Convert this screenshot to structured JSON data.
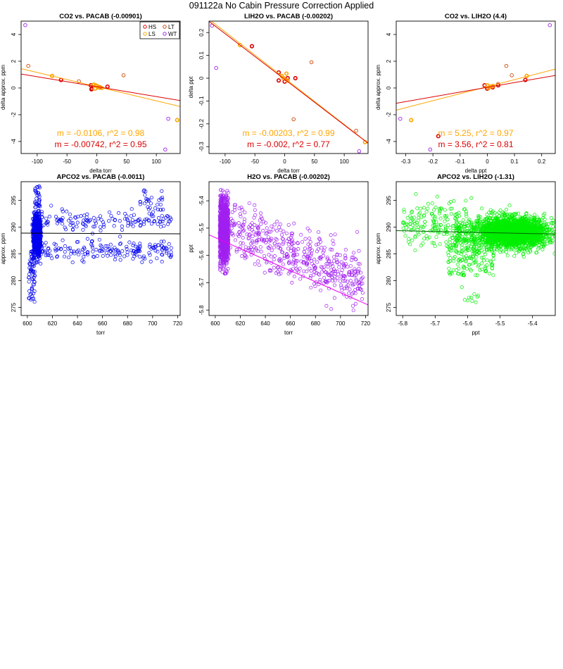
{
  "page": {
    "title": "091122a   No Cabin Pressure Correction Applied"
  },
  "colors": {
    "HS": "#dd0000",
    "LS": "#ffa500",
    "LT": "#cc4400",
    "WT": "#a020f0",
    "blue": "#0000ee",
    "purple": "#a020f0",
    "green": "#00ee00",
    "magenta": "#ee00ee",
    "darkgreen": "#006400"
  },
  "chart_data": [
    {
      "id": "p1",
      "type": "scatter",
      "title": "CO2 vs. PACAB (-0.00901)",
      "xlabel": "delta torr",
      "ylabel": "delta approx. ppm",
      "xlim": [
        -127,
        140
      ],
      "ylim": [
        -4.9,
        5.0
      ],
      "xticks": [
        -100,
        -50,
        0,
        50,
        100
      ],
      "yticks": [
        -4,
        -2,
        0,
        2,
        4
      ],
      "legend": {
        "position": "top-right",
        "entries": [
          {
            "label": "HS",
            "color": "#dd0000"
          },
          {
            "label": "LT",
            "color": "#cc4400"
          },
          {
            "label": "LS",
            "color": "#ffa500"
          },
          {
            "label": "WT",
            "color": "#a020f0"
          }
        ]
      },
      "series": [
        {
          "name": "HS",
          "color": "#dd0000",
          "points": [
            [
              -10,
              0.2
            ],
            [
              -8,
              -0.05
            ],
            [
              -9,
              -0.1
            ],
            [
              18,
              0.1
            ],
            [
              -60,
              0.6
            ],
            [
              5,
              0.05
            ]
          ]
        },
        {
          "name": "LS",
          "color": "#ffa500",
          "points": [
            [
              -75,
              0.9
            ],
            [
              -5,
              0.25
            ],
            [
              -2,
              0.2
            ],
            [
              0,
              0.15
            ],
            [
              3,
              0.1
            ],
            [
              8,
              0.0
            ],
            [
              -3,
              -0.05
            ],
            [
              2,
              0.05
            ],
            [
              135,
              -2.4
            ]
          ]
        },
        {
          "name": "LT",
          "color": "#cc4400",
          "points": [
            [
              -115,
              1.65
            ],
            [
              45,
              0.95
            ],
            [
              -30,
              0.5
            ]
          ]
        },
        {
          "name": "WT",
          "color": "#a020f0",
          "points": [
            [
              -120,
              4.7
            ],
            [
              115,
              -4.6
            ],
            [
              120,
              -2.3
            ]
          ]
        }
      ],
      "lines": [
        {
          "color": "#ffa500",
          "slope": -0.0106,
          "intercept": 0.1
        },
        {
          "color": "#dd0000",
          "slope": -0.00742,
          "intercept": 0.1
        }
      ],
      "annotations": [
        {
          "text": "m = -0.0106, r^2 = 0.98",
          "color": "#ffa500"
        },
        {
          "text": "m = -0.00742, r^2 = 0.95",
          "color": "#dd0000"
        }
      ]
    },
    {
      "id": "p2",
      "type": "scatter",
      "title": "LIH2O vs. PACAB (-0.00202)",
      "xlabel": "delta torr",
      "ylabel": "delta ppt",
      "xlim": [
        -127,
        140
      ],
      "ylim": [
        -0.33,
        0.25
      ],
      "xticks": [
        -100,
        -50,
        0,
        50,
        100
      ],
      "yticks": [
        -0.3,
        -0.2,
        -0.1,
        0.0,
        0.1,
        0.2
      ],
      "series": [
        {
          "name": "HS",
          "color": "#dd0000",
          "points": [
            [
              -55,
              0.14
            ],
            [
              -10,
              0.025
            ],
            [
              -10,
              -0.01
            ],
            [
              5,
              0.0
            ],
            [
              18,
              0.0
            ],
            [
              0,
              -0.015
            ]
          ]
        },
        {
          "name": "LS",
          "color": "#ffa500",
          "points": [
            [
              -75,
              0.145
            ],
            [
              -5,
              0.01
            ],
            [
              3,
              0.02
            ],
            [
              5,
              -0.01
            ],
            [
              135,
              -0.28
            ],
            [
              -2,
              0.0
            ]
          ]
        },
        {
          "name": "LT",
          "color": "#cc4400",
          "points": [
            [
              45,
              0.07
            ],
            [
              15,
              -0.18
            ],
            [
              120,
              -0.23
            ]
          ]
        },
        {
          "name": "WT",
          "color": "#a020f0",
          "points": [
            [
              -122,
              0.23
            ],
            [
              -115,
              0.045
            ],
            [
              125,
              -0.32
            ]
          ]
        }
      ],
      "lines": [
        {
          "color": "#ffa500",
          "slope": -0.00203,
          "intercept": 0.0
        },
        {
          "color": "#dd0000",
          "slope": -0.002,
          "intercept": -0.005
        }
      ],
      "annotations": [
        {
          "text": "m = -0.00203, r^2 = 0.99",
          "color": "#ffa500"
        },
        {
          "text": "m = -0.002, r^2 = 0.77",
          "color": "#dd0000"
        }
      ]
    },
    {
      "id": "p3",
      "type": "scatter",
      "title": "CO2 vs. LIH2O (4.4)",
      "xlabel": "delta ppt",
      "ylabel": "delta approx. ppm",
      "xlim": [
        -0.335,
        0.25
      ],
      "ylim": [
        -4.9,
        5.0
      ],
      "xticks": [
        -0.3,
        -0.2,
        -0.1,
        0.0,
        0.1,
        0.2
      ],
      "yticks": [
        -4,
        -2,
        0,
        2,
        4
      ],
      "series": [
        {
          "name": "HS",
          "color": "#dd0000",
          "points": [
            [
              0.14,
              0.6
            ],
            [
              -0.01,
              0.2
            ],
            [
              0.0,
              -0.05
            ],
            [
              0.02,
              0.05
            ],
            [
              0.04,
              0.2
            ],
            [
              -0.18,
              -3.6
            ]
          ]
        },
        {
          "name": "LS",
          "color": "#ffa500",
          "points": [
            [
              0.145,
              0.9
            ],
            [
              0.0,
              0.2
            ],
            [
              0.01,
              0.1
            ],
            [
              0.02,
              0.15
            ],
            [
              -0.28,
              -2.4
            ],
            [
              0.005,
              0.0
            ]
          ]
        },
        {
          "name": "LT",
          "color": "#cc4400",
          "points": [
            [
              0.07,
              1.65
            ],
            [
              0.09,
              0.95
            ],
            [
              0.04,
              0.3
            ]
          ]
        },
        {
          "name": "WT",
          "color": "#a020f0",
          "points": [
            [
              0.23,
              4.7
            ],
            [
              -0.32,
              -2.3
            ],
            [
              -0.21,
              -4.6
            ]
          ]
        }
      ],
      "lines": [
        {
          "color": "#ffa500",
          "slope": 5.25,
          "intercept": 0.1
        },
        {
          "color": "#dd0000",
          "slope": 3.56,
          "intercept": 0.05
        }
      ],
      "annotations": [
        {
          "text": "m = 5.25, r^2 = 0.97",
          "color": "#ffa500"
        },
        {
          "text": "m = 3.56, r^2 = 0.81",
          "color": "#dd0000"
        }
      ]
    },
    {
      "id": "p4",
      "type": "scatter",
      "title": "APCO2 vs. PACAB (-0.0011)",
      "xlabel": "torr",
      "ylabel": "approx. ppm",
      "xlim": [
        595,
        722
      ],
      "ylim": [
        273.5,
        298.5
      ],
      "xticks": [
        600,
        620,
        640,
        660,
        680,
        700,
        720
      ],
      "yticks": [
        275,
        280,
        285,
        290,
        295
      ],
      "point_color": "#0000ee",
      "distribution": "dense vertical cluster near 605-610 torr (278-298 ppm) with two scattered bands 285-288 and 290-293 ppm out to 715 torr",
      "lines": [
        {
          "color": "#000000",
          "slope": -0.0011,
          "intercept": 289.55,
          "x0": 0
        }
      ]
    },
    {
      "id": "p5",
      "type": "scatter",
      "title": "H2O vs. PACAB (-0.00202)",
      "xlabel": "torr",
      "ylabel": "ppt",
      "xlim": [
        595,
        722
      ],
      "ylim": [
        -5.82,
        -5.33
      ],
      "xticks": [
        600,
        620,
        640,
        660,
        680,
        700,
        720
      ],
      "yticks": [
        -5.4,
        -5.5,
        -5.6,
        -5.7,
        -5.8
      ],
      "point_color": "#a020f0",
      "distribution": "dense vertical cluster near 603-611 torr (-5.36 to -5.66 ppt), scattered points descending to -5.8 ppt at 718 torr",
      "lines": [
        {
          "color": "#ee00ee",
          "slope": -0.00202,
          "intercept": -5.555,
          "x0": 610
        }
      ]
    },
    {
      "id": "p6",
      "type": "scatter",
      "title": "APCO2 vs. LIH2O (-1.31)",
      "xlabel": "ppt",
      "ylabel": "approx. ppm",
      "xlim": [
        -5.82,
        -5.33
      ],
      "ylim": [
        273.5,
        298.5
      ],
      "xticks": [
        -5.8,
        -5.7,
        -5.6,
        -5.5,
        -5.4
      ],
      "yticks": [
        275,
        280,
        285,
        290,
        295
      ],
      "point_color": "#00ee00",
      "distribution": "large dense cloud from -5.6 to -5.37 ppt centred at 289 ppm, sparse tail to -5.8 ppt and down to 275 ppm",
      "lines": [
        {
          "color": "#006400",
          "slope": -1.31,
          "intercept": 289.0,
          "x0": -5.55
        }
      ]
    }
  ]
}
